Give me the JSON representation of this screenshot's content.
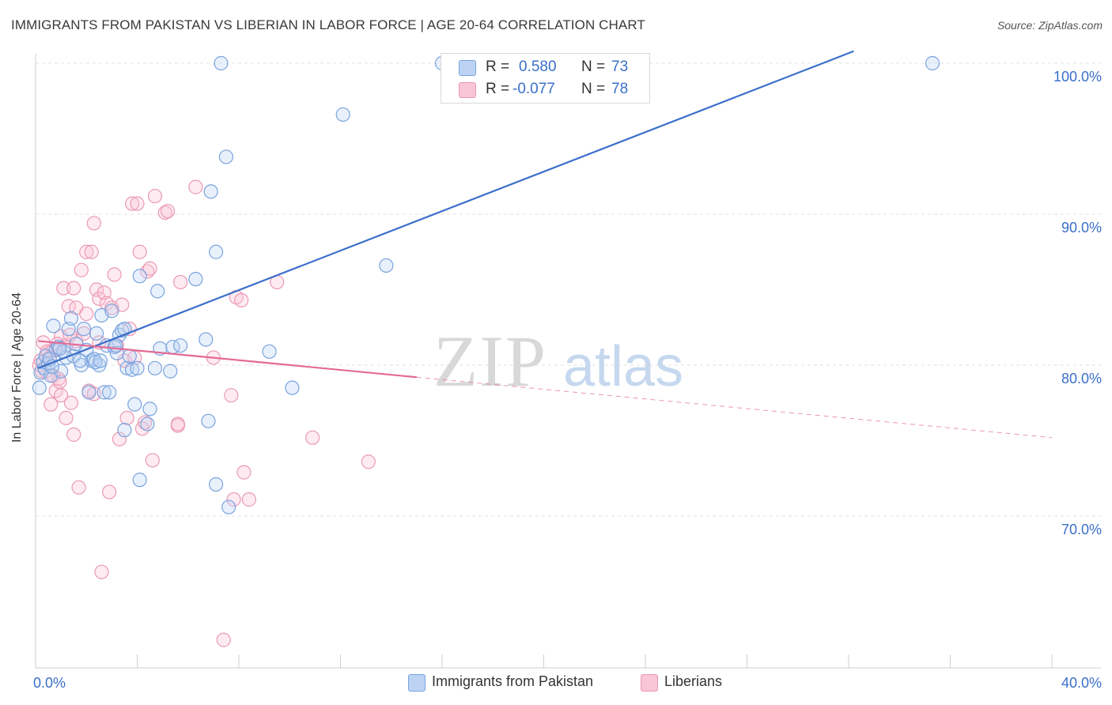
{
  "title": "IMMIGRANTS FROM PAKISTAN VS LIBERIAN IN LABOR FORCE | AGE 20-64 CORRELATION CHART",
  "source": "Source: ZipAtlas.com",
  "watermark": {
    "zip": "ZIP",
    "atlas": "atlas"
  },
  "stats": {
    "pakistan": {
      "r_label": "R =",
      "r_value": "0.580",
      "n_label": "N =",
      "n_value": "73"
    },
    "liberian": {
      "r_label": "R =",
      "r_value": "-0.077",
      "n_label": "N =",
      "n_value": "78"
    }
  },
  "legend": {
    "pakistan": "Immigrants from Pakistan",
    "liberian": "Liberians"
  },
  "colors": {
    "pakistan": "#3b6fc9",
    "pakistan_fill": "#bcd3f3",
    "liberian": "#e46a96",
    "liberian_fill": "#f8c6d6",
    "tick_text": "#3b6fc9"
  },
  "chart_data": {
    "type": "scatter",
    "title": "IMMIGRANTS FROM PAKISTAN VS LIBERIAN IN LABOR FORCE | AGE 20-64 CORRELATION CHART",
    "xlabel": "",
    "ylabel": "In Labor Force | Age 20-64",
    "xlim": [
      0,
      40
    ],
    "ylim": [
      60,
      101
    ],
    "x_tick_labels": [
      "0.0%",
      "40.0%"
    ],
    "y_ticks": [
      70,
      80,
      90,
      100
    ],
    "y_tick_labels": [
      "70.0%",
      "80.0%",
      "90.0%",
      "100.0%"
    ],
    "grid": "horizontal dashed",
    "legend_position": "bottom-center",
    "series": [
      {
        "name": "Immigrants from Pakistan",
        "trend": {
          "x": [
            0.1,
            32.2
          ],
          "y": [
            79.8,
            100.8
          ]
        },
        "points": [
          [
            0.2,
            79.5
          ],
          [
            0.3,
            80.2
          ],
          [
            0.35,
            79.8
          ],
          [
            0.4,
            80.6
          ],
          [
            0.5,
            80.1
          ],
          [
            0.6,
            79.3
          ],
          [
            0.7,
            82.6
          ],
          [
            0.8,
            81.0
          ],
          [
            0.9,
            81.2
          ],
          [
            1.0,
            79.6
          ],
          [
            1.2,
            80.5
          ],
          [
            1.3,
            82.4
          ],
          [
            1.4,
            83.1
          ],
          [
            1.5,
            80.6
          ],
          [
            1.6,
            81.4
          ],
          [
            1.8,
            80.0
          ],
          [
            1.9,
            82.4
          ],
          [
            2.0,
            81.0
          ],
          [
            2.1,
            78.2
          ],
          [
            2.2,
            80.3
          ],
          [
            2.3,
            80.4
          ],
          [
            2.4,
            82.1
          ],
          [
            2.5,
            80.0
          ],
          [
            2.6,
            83.3
          ],
          [
            2.7,
            78.2
          ],
          [
            2.8,
            81.3
          ],
          [
            2.9,
            78.2
          ],
          [
            3.0,
            83.6
          ],
          [
            3.1,
            81.2
          ],
          [
            3.2,
            80.8
          ],
          [
            3.3,
            82.0
          ],
          [
            3.4,
            82.3
          ],
          [
            3.5,
            82.4
          ],
          [
            3.5,
            75.7
          ],
          [
            3.6,
            79.8
          ],
          [
            3.7,
            80.6
          ],
          [
            3.8,
            79.7
          ],
          [
            3.9,
            77.4
          ],
          [
            4.0,
            79.8
          ],
          [
            4.1,
            72.4
          ],
          [
            4.1,
            85.9
          ],
          [
            4.4,
            76.1
          ],
          [
            4.5,
            77.1
          ],
          [
            4.7,
            79.8
          ],
          [
            4.8,
            84.9
          ],
          [
            4.9,
            81.1
          ],
          [
            5.3,
            79.6
          ],
          [
            5.4,
            81.2
          ],
          [
            5.7,
            81.3
          ],
          [
            6.3,
            85.7
          ],
          [
            6.7,
            81.7
          ],
          [
            6.8,
            76.3
          ],
          [
            6.9,
            91.5
          ],
          [
            7.1,
            87.5
          ],
          [
            7.1,
            72.1
          ],
          [
            7.3,
            100.0
          ],
          [
            7.5,
            93.8
          ],
          [
            7.6,
            70.6
          ],
          [
            9.2,
            80.9
          ],
          [
            10.1,
            78.5
          ],
          [
            12.1,
            96.6
          ],
          [
            13.8,
            86.6
          ],
          [
            16.0,
            100.0
          ],
          [
            35.3,
            100.0
          ],
          [
            0.15,
            78.5
          ],
          [
            0.55,
            80.4
          ],
          [
            1.1,
            80.9
          ],
          [
            2.35,
            80.2
          ],
          [
            0.95,
            81.1
          ],
          [
            3.15,
            81.3
          ],
          [
            1.75,
            80.3
          ],
          [
            0.65,
            79.9
          ],
          [
            2.55,
            80.3
          ]
        ]
      },
      {
        "name": "Liberians",
        "trend": {
          "x": [
            0.1,
            15.0
          ],
          "y": [
            81.6,
            79.2
          ]
        },
        "trend_extension": {
          "x": [
            15.0,
            40.0
          ],
          "y": [
            79.2,
            75.2
          ]
        },
        "points": [
          [
            0.2,
            80.3
          ],
          [
            0.3,
            81.5
          ],
          [
            0.4,
            79.6
          ],
          [
            0.5,
            80.8
          ],
          [
            0.6,
            77.4
          ],
          [
            0.7,
            81.0
          ],
          [
            0.8,
            78.3
          ],
          [
            0.9,
            79.1
          ],
          [
            1.0,
            81.9
          ],
          [
            1.0,
            78.0
          ],
          [
            1.1,
            85.1
          ],
          [
            1.2,
            76.5
          ],
          [
            1.2,
            81.3
          ],
          [
            1.3,
            83.9
          ],
          [
            1.4,
            77.5
          ],
          [
            1.5,
            75.4
          ],
          [
            1.5,
            85.1
          ],
          [
            1.6,
            81.6
          ],
          [
            1.6,
            83.8
          ],
          [
            1.7,
            71.9
          ],
          [
            1.8,
            86.3
          ],
          [
            1.9,
            82.1
          ],
          [
            2.0,
            87.5
          ],
          [
            2.0,
            83.4
          ],
          [
            2.1,
            78.3
          ],
          [
            2.2,
            87.5
          ],
          [
            2.3,
            78.1
          ],
          [
            2.3,
            89.4
          ],
          [
            2.4,
            85.0
          ],
          [
            2.5,
            81.5
          ],
          [
            2.5,
            84.4
          ],
          [
            2.6,
            66.3
          ],
          [
            2.7,
            84.8
          ],
          [
            2.8,
            84.1
          ],
          [
            2.9,
            71.6
          ],
          [
            3.0,
            83.8
          ],
          [
            3.1,
            86.0
          ],
          [
            3.2,
            81.3
          ],
          [
            3.3,
            75.1
          ],
          [
            3.4,
            84.0
          ],
          [
            3.5,
            80.3
          ],
          [
            3.6,
            76.5
          ],
          [
            3.7,
            82.4
          ],
          [
            3.8,
            90.7
          ],
          [
            3.9,
            80.5
          ],
          [
            4.0,
            90.7
          ],
          [
            4.1,
            87.5
          ],
          [
            4.2,
            75.8
          ],
          [
            4.3,
            76.2
          ],
          [
            4.4,
            86.2
          ],
          [
            4.5,
            86.4
          ],
          [
            4.6,
            73.7
          ],
          [
            4.7,
            91.2
          ],
          [
            5.1,
            90.1
          ],
          [
            5.2,
            90.2
          ],
          [
            5.6,
            76.0
          ],
          [
            5.6,
            76.1
          ],
          [
            5.7,
            85.5
          ],
          [
            6.3,
            91.8
          ],
          [
            7.0,
            80.5
          ],
          [
            7.4,
            61.8
          ],
          [
            7.7,
            78.0
          ],
          [
            7.8,
            71.1
          ],
          [
            7.9,
            84.5
          ],
          [
            8.1,
            84.3
          ],
          [
            8.2,
            72.9
          ],
          [
            8.4,
            71.1
          ],
          [
            9.5,
            85.5
          ],
          [
            10.9,
            75.2
          ],
          [
            13.1,
            73.6
          ],
          [
            0.15,
            80.0
          ],
          [
            0.45,
            80.9
          ],
          [
            0.85,
            81.4
          ],
          [
            1.35,
            82.0
          ],
          [
            0.25,
            79.6
          ],
          [
            0.7,
            79.3
          ],
          [
            0.95,
            78.9
          ],
          [
            0.55,
            80.5
          ]
        ]
      }
    ]
  }
}
